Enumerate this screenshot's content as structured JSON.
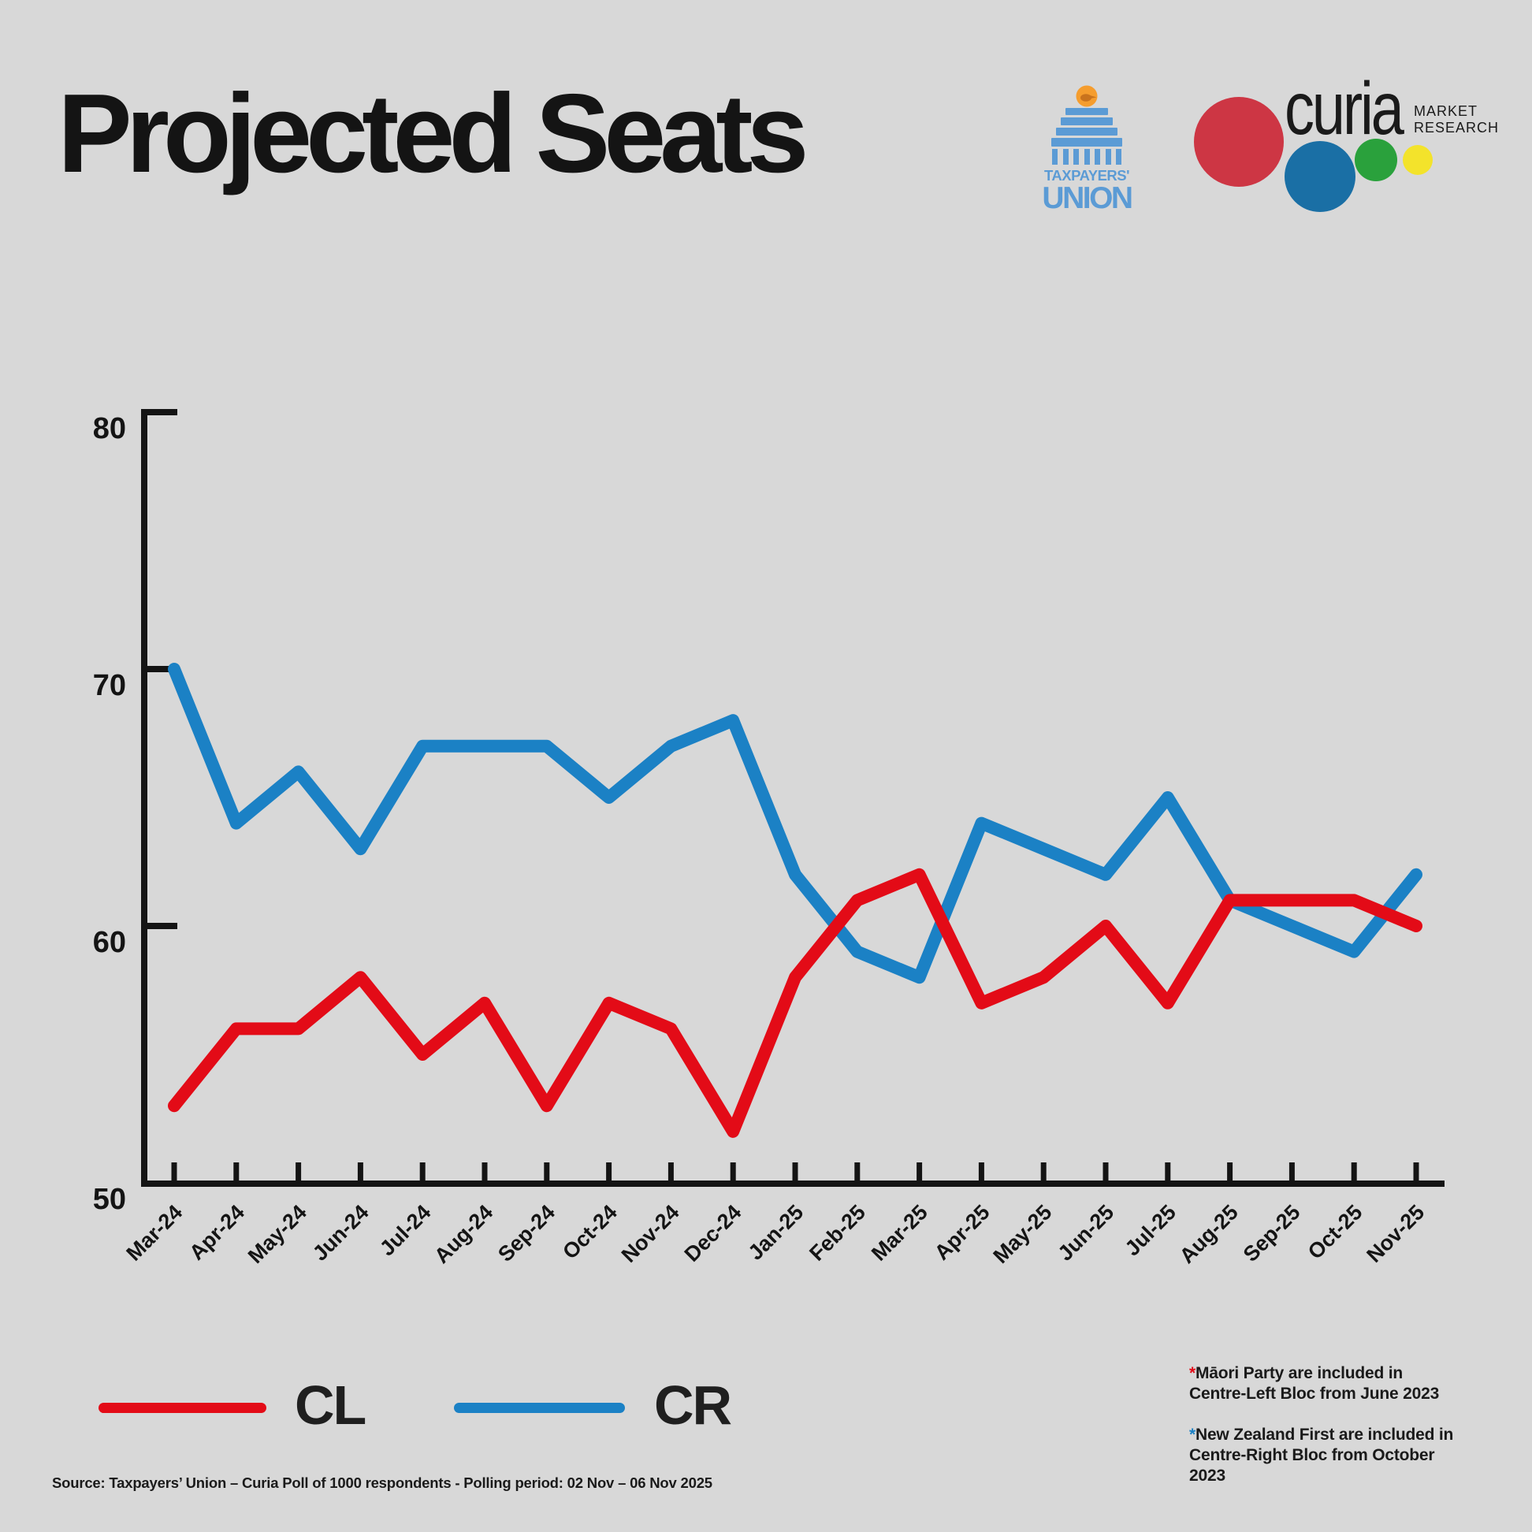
{
  "header": {
    "title": "Projected Seats"
  },
  "colors": {
    "bg": "#d8d8d8",
    "ink": "#141414",
    "cl": "#e30b17",
    "cr": "#1b81c5",
    "tpu_blue": "#5b9bd5",
    "tpu_orange": "#f59d2e",
    "tpu_kiwi": "#c9731d",
    "curia_red": "#cd3644",
    "curia_blue": "#1a6fa5",
    "curia_green": "#2aa13c",
    "curia_yellow": "#f3e32b"
  },
  "logos": {
    "tpu": {
      "line1": "TAXPAYERS'",
      "line2": "UNION"
    },
    "curia": {
      "wordmark": "curia",
      "tag_line1": "MARKET",
      "tag_line2": "RESEARCH"
    }
  },
  "chart_data": {
    "type": "line",
    "title": "Projected Seats",
    "categories": [
      "Mar-24",
      "Apr-24",
      "May-24",
      "Jun-24",
      "Jul-24",
      "Aug-24",
      "Sep-24",
      "Oct-24",
      "Nov-24",
      "Dec-24",
      "Jan-25",
      "Feb-25",
      "Mar-25",
      "Apr-25",
      "May-25",
      "Jun-25",
      "Jul-25",
      "Aug-25",
      "Sep-25",
      "Oct-25",
      "Nov-25"
    ],
    "series": [
      {
        "name": "CL",
        "color": "#e30b17",
        "values": [
          53,
          56,
          56,
          58,
          55,
          57,
          53,
          57,
          56,
          52,
          58,
          61,
          62,
          57,
          58,
          60,
          57,
          61,
          61,
          61,
          60
        ]
      },
      {
        "name": "CR",
        "color": "#1b81c5",
        "values": [
          70,
          64,
          66,
          63,
          67,
          67,
          67,
          65,
          67,
          68,
          62,
          59,
          58,
          64,
          63,
          62,
          65,
          61,
          60,
          59,
          62
        ]
      }
    ],
    "xlabel": "",
    "ylabel": "",
    "ylim": [
      50,
      80
    ],
    "yticks": [
      80,
      70,
      60,
      50
    ],
    "grid": false,
    "legend_position": "bottom-left"
  },
  "legend": {
    "items": [
      {
        "label": "CL",
        "color": "#e30b17"
      },
      {
        "label": "CR",
        "color": "#1b81c5"
      }
    ]
  },
  "footnotes": [
    {
      "star": "*",
      "line1": "Māori Party are included in",
      "line2": "Centre-Left Bloc from June 2023"
    },
    {
      "star": "*",
      "line1": "New Zealand First are included in",
      "line2": "Centre-Right Bloc from October 2023"
    }
  ],
  "source": "Source: Taxpayers’ Union – Curia Poll of 1000 respondents -  Polling period: 02 Nov – 06 Nov 2025"
}
